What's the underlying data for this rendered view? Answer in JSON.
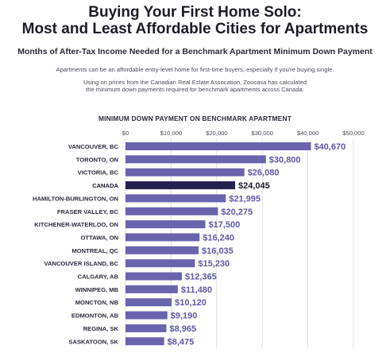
{
  "header": {
    "title_line1": "Buying Your First Home Solo:",
    "title_line2": "Most and Least Affordable Cities for Apartments",
    "subtitle": "Months of After-Tax Income Needed for a Benchmark Apartment Minimum Down Payment",
    "description_line1": "Apartments can be an affordable entry-level home for first-time buyers, especially if you're buying single.",
    "description_line2": "Using on prices from the Canadian Real Estate Assocation, Zoocasa has calculated",
    "description_line3": "the minimum down payments required for benchmark apartments across Canada."
  },
  "colors": {
    "bar": "#6a64ad",
    "highlight_bar": "#23204d",
    "value_label": "#5e58a6",
    "highlight_label": "#1c1c28"
  },
  "chart_data": {
    "type": "bar",
    "orientation": "horizontal",
    "title": "MINIMUM DOWN PAYMENT ON BENCHMARK APARTMENT",
    "xlim": [
      0,
      50000
    ],
    "x_ticks": [
      "$0",
      "$10,000",
      "$20,000",
      "$30,000",
      "$40,000",
      "$50,000"
    ],
    "x_tick_values": [
      0,
      10000,
      20000,
      30000,
      40000,
      50000
    ],
    "grid": true,
    "highlight": "CANADA",
    "categories": [
      "VANCOUVER, BC",
      "TORONTO, ON",
      "VICTORIA, BC",
      "CANADA",
      "HAMILTON-BURLINGTON, ON",
      "FRASER VALLEY, BC",
      "KITCHENER-WATERLOO, ON",
      "OTTAWA, ON",
      "MONTREAL, QC",
      "VANCOUVER ISLAND, BC",
      "CALGARY, AB",
      "WINNIPEG, MB",
      "MONCTON, NB",
      "EDMONTON, AB",
      "REGINA, SK",
      "SASKATOON, SK"
    ],
    "values": [
      40670,
      30800,
      26080,
      24045,
      21995,
      20275,
      17500,
      16240,
      16035,
      15230,
      12365,
      11480,
      10120,
      9190,
      8965,
      8475
    ],
    "value_labels": [
      "$40,670",
      "$30,800",
      "$26,080",
      "$24,045",
      "$21,995",
      "$20,275",
      "$17,500",
      "$16,240",
      "$16,035",
      "$15,230",
      "$12,365",
      "$11,480",
      "$10,120",
      "$9,190",
      "$8,965",
      "$8,475"
    ]
  }
}
